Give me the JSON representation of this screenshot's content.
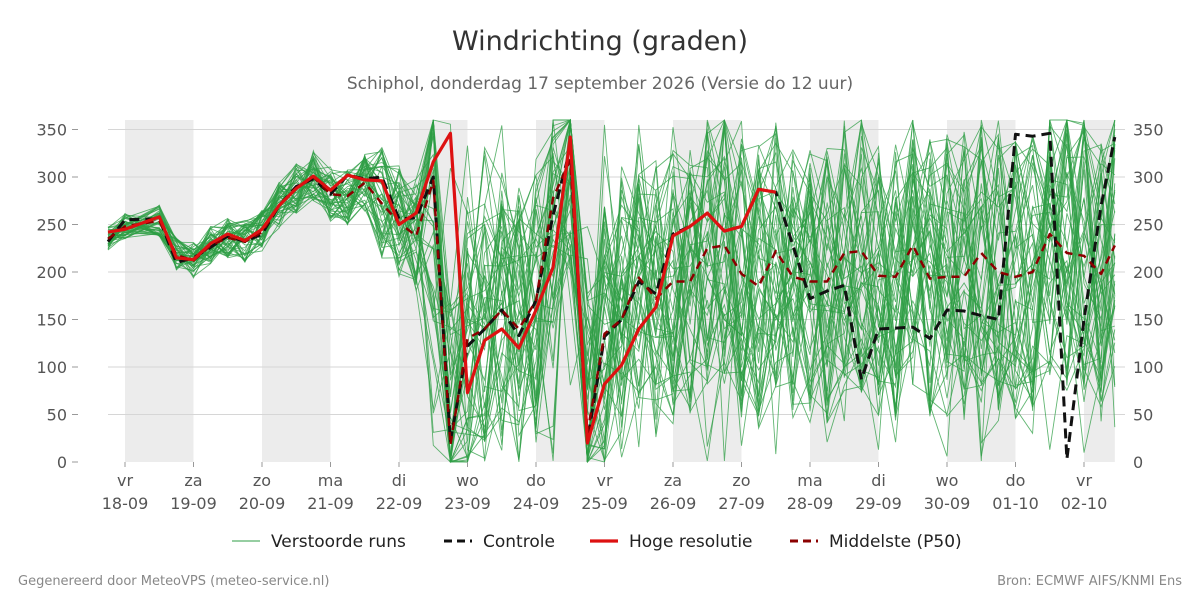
{
  "chart_data": {
    "type": "line",
    "title": "Windrichting (graden)",
    "subtitle": "Schiphol, donderdag 17 september 2026 (Versie do 12 uur)",
    "footer_left": "Gegenereerd door MeteoVPS (meteo-service.nl)",
    "footer_right": "Bron: ECMWF AIFS/KNMI Ens",
    "ylim": [
      0,
      360
    ],
    "yticks": [
      0,
      50,
      100,
      150,
      200,
      250,
      300,
      350
    ],
    "xlim": [
      -0.25,
      14.45
    ],
    "grid": true,
    "legend_position": "bottom",
    "x_ticks": [
      {
        "x": 0,
        "day": "vr",
        "date": "18-09"
      },
      {
        "x": 1,
        "day": "za",
        "date": "19-09"
      },
      {
        "x": 2,
        "day": "zo",
        "date": "20-09"
      },
      {
        "x": 3,
        "day": "ma",
        "date": "21-09"
      },
      {
        "x": 4,
        "day": "di",
        "date": "22-09"
      },
      {
        "x": 5,
        "day": "wo",
        "date": "23-09"
      },
      {
        "x": 6,
        "day": "do",
        "date": "24-09"
      },
      {
        "x": 7,
        "day": "vr",
        "date": "25-09"
      },
      {
        "x": 8,
        "day": "za",
        "date": "26-09"
      },
      {
        "x": 9,
        "day": "zo",
        "date": "27-09"
      },
      {
        "x": 10,
        "day": "ma",
        "date": "28-09"
      },
      {
        "x": 11,
        "day": "di",
        "date": "29-09"
      },
      {
        "x": 12,
        "day": "wo",
        "date": "30-09"
      },
      {
        "x": 13,
        "day": "do",
        "date": "01-10"
      },
      {
        "x": 14,
        "day": "vr",
        "date": "02-10"
      }
    ],
    "shaded_days": [
      [
        0,
        1
      ],
      [
        2,
        3
      ],
      [
        4,
        5
      ],
      [
        6,
        7
      ],
      [
        8,
        9
      ],
      [
        10,
        11
      ],
      [
        12,
        13
      ],
      [
        14,
        14.45
      ]
    ],
    "legend": [
      {
        "label": "Verstoorde runs",
        "color": "#2e9e44",
        "style": "thin"
      },
      {
        "label": "Controle",
        "color": "#111111",
        "style": "dashed"
      },
      {
        "label": "Hoge resolutie",
        "color": "#dd1111",
        "style": "solid"
      },
      {
        "label": "Middelste (P50)",
        "color": "#8b0000",
        "style": "dashed"
      }
    ],
    "series": [
      {
        "name": "Hoge resolutie",
        "color": "#dd1111",
        "points": [
          [
            -0.25,
            242
          ],
          [
            0,
            245
          ],
          [
            0.5,
            258
          ],
          [
            0.75,
            215
          ],
          [
            1,
            213
          ],
          [
            1.25,
            230
          ],
          [
            1.5,
            240
          ],
          [
            1.75,
            233
          ],
          [
            2,
            245
          ],
          [
            2.25,
            270
          ],
          [
            2.5,
            288
          ],
          [
            2.75,
            301
          ],
          [
            3,
            286
          ],
          [
            3.25,
            302
          ],
          [
            3.5,
            297
          ],
          [
            3.75,
            296
          ],
          [
            4,
            250
          ],
          [
            4.25,
            262
          ],
          [
            4.5,
            316
          ],
          [
            4.75,
            346
          ],
          [
            5,
            73
          ],
          [
            5.25,
            128
          ],
          [
            5.5,
            140
          ],
          [
            5.75,
            120
          ],
          [
            6,
            160
          ],
          [
            6.25,
            205
          ],
          [
            6.5,
            342
          ],
          [
            6.75,
            20
          ],
          [
            7,
            82
          ],
          [
            7.25,
            102
          ],
          [
            7.5,
            140
          ],
          [
            7.75,
            163
          ],
          [
            8,
            238
          ],
          [
            8.25,
            248
          ],
          [
            8.5,
            262
          ],
          [
            8.75,
            243
          ],
          [
            9,
            248
          ],
          [
            9.25,
            287
          ],
          [
            9.5,
            284
          ]
        ]
      },
      {
        "name": "Controle",
        "color": "#111111",
        "points": [
          [
            -0.25,
            232
          ],
          [
            0,
            255
          ],
          [
            0.5,
            256
          ],
          [
            0.75,
            210
          ],
          [
            1,
            215
          ],
          [
            1.25,
            226
          ],
          [
            1.5,
            238
          ],
          [
            1.75,
            232
          ],
          [
            2,
            240
          ],
          [
            2.25,
            270
          ],
          [
            2.5,
            290
          ],
          [
            2.75,
            298
          ],
          [
            3,
            282
          ],
          [
            3.25,
            302
          ],
          [
            3.5,
            298
          ],
          [
            3.75,
            300
          ],
          [
            4,
            256
          ],
          [
            4.25,
            257
          ],
          [
            4.5,
            300
          ],
          [
            4.75,
            22
          ],
          [
            5,
            122
          ],
          [
            5.25,
            140
          ],
          [
            5.5,
            160
          ],
          [
            5.75,
            133
          ],
          [
            6,
            170
          ],
          [
            6.25,
            260
          ],
          [
            6.5,
            330
          ],
          [
            6.75,
            22
          ],
          [
            7,
            132
          ],
          [
            7.25,
            150
          ],
          [
            7.5,
            190
          ],
          [
            7.75,
            177
          ],
          [
            8,
            240
          ],
          [
            8.25,
            248
          ],
          [
            8.5,
            262
          ],
          [
            8.75,
            243
          ],
          [
            9,
            248
          ],
          [
            9.25,
            287
          ],
          [
            9.5,
            284
          ],
          [
            9.75,
            228
          ],
          [
            10,
            172
          ],
          [
            10.25,
            180
          ],
          [
            10.5,
            186
          ],
          [
            10.75,
            87
          ],
          [
            11,
            140
          ],
          [
            11.25,
            141
          ],
          [
            11.5,
            142
          ],
          [
            11.75,
            130
          ],
          [
            12,
            160
          ],
          [
            12.25,
            159
          ],
          [
            12.5,
            154
          ],
          [
            12.75,
            150
          ],
          [
            13,
            345
          ],
          [
            13.25,
            343
          ],
          [
            13.5,
            346
          ],
          [
            13.75,
            3
          ],
          [
            14,
            150
          ],
          [
            14.25,
            270
          ],
          [
            14.45,
            342
          ]
        ]
      },
      {
        "name": "Middelste (P50)",
        "color": "#8b0000",
        "points": [
          [
            -0.25,
            235
          ],
          [
            0,
            248
          ],
          [
            0.5,
            254
          ],
          [
            0.75,
            218
          ],
          [
            1,
            212
          ],
          [
            1.25,
            228
          ],
          [
            1.5,
            236
          ],
          [
            1.75,
            232
          ],
          [
            2,
            242
          ],
          [
            2.25,
            270
          ],
          [
            2.5,
            288
          ],
          [
            2.75,
            300
          ],
          [
            3,
            282
          ],
          [
            3.25,
            280
          ],
          [
            3.5,
            294
          ],
          [
            3.75,
            272
          ],
          [
            4,
            252
          ],
          [
            4.25,
            238
          ],
          [
            4.5,
            296
          ],
          [
            4.75,
            18
          ],
          [
            5,
            130
          ],
          [
            5.25,
            140
          ],
          [
            5.5,
            160
          ],
          [
            5.75,
            140
          ],
          [
            6,
            170
          ],
          [
            6.25,
            278
          ],
          [
            6.5,
            318
          ],
          [
            6.75,
            30
          ],
          [
            7,
            135
          ],
          [
            7.25,
            150
          ],
          [
            7.5,
            194
          ],
          [
            7.75,
            172
          ],
          [
            8,
            190
          ],
          [
            8.25,
            190
          ],
          [
            8.5,
            225
          ],
          [
            8.75,
            228
          ],
          [
            9,
            198
          ],
          [
            9.25,
            185
          ],
          [
            9.5,
            222
          ],
          [
            9.75,
            195
          ],
          [
            10,
            190
          ],
          [
            10.25,
            190
          ],
          [
            10.5,
            220
          ],
          [
            10.75,
            222
          ],
          [
            11,
            196
          ],
          [
            11.25,
            195
          ],
          [
            11.5,
            228
          ],
          [
            11.75,
            193
          ],
          [
            12,
            195
          ],
          [
            12.25,
            195
          ],
          [
            12.5,
            220
          ],
          [
            12.75,
            200
          ],
          [
            13,
            195
          ],
          [
            13.25,
            200
          ],
          [
            13.5,
            240
          ],
          [
            13.75,
            220
          ],
          [
            14,
            217
          ],
          [
            14.25,
            198
          ],
          [
            14.45,
            228
          ]
        ]
      }
    ]
  }
}
